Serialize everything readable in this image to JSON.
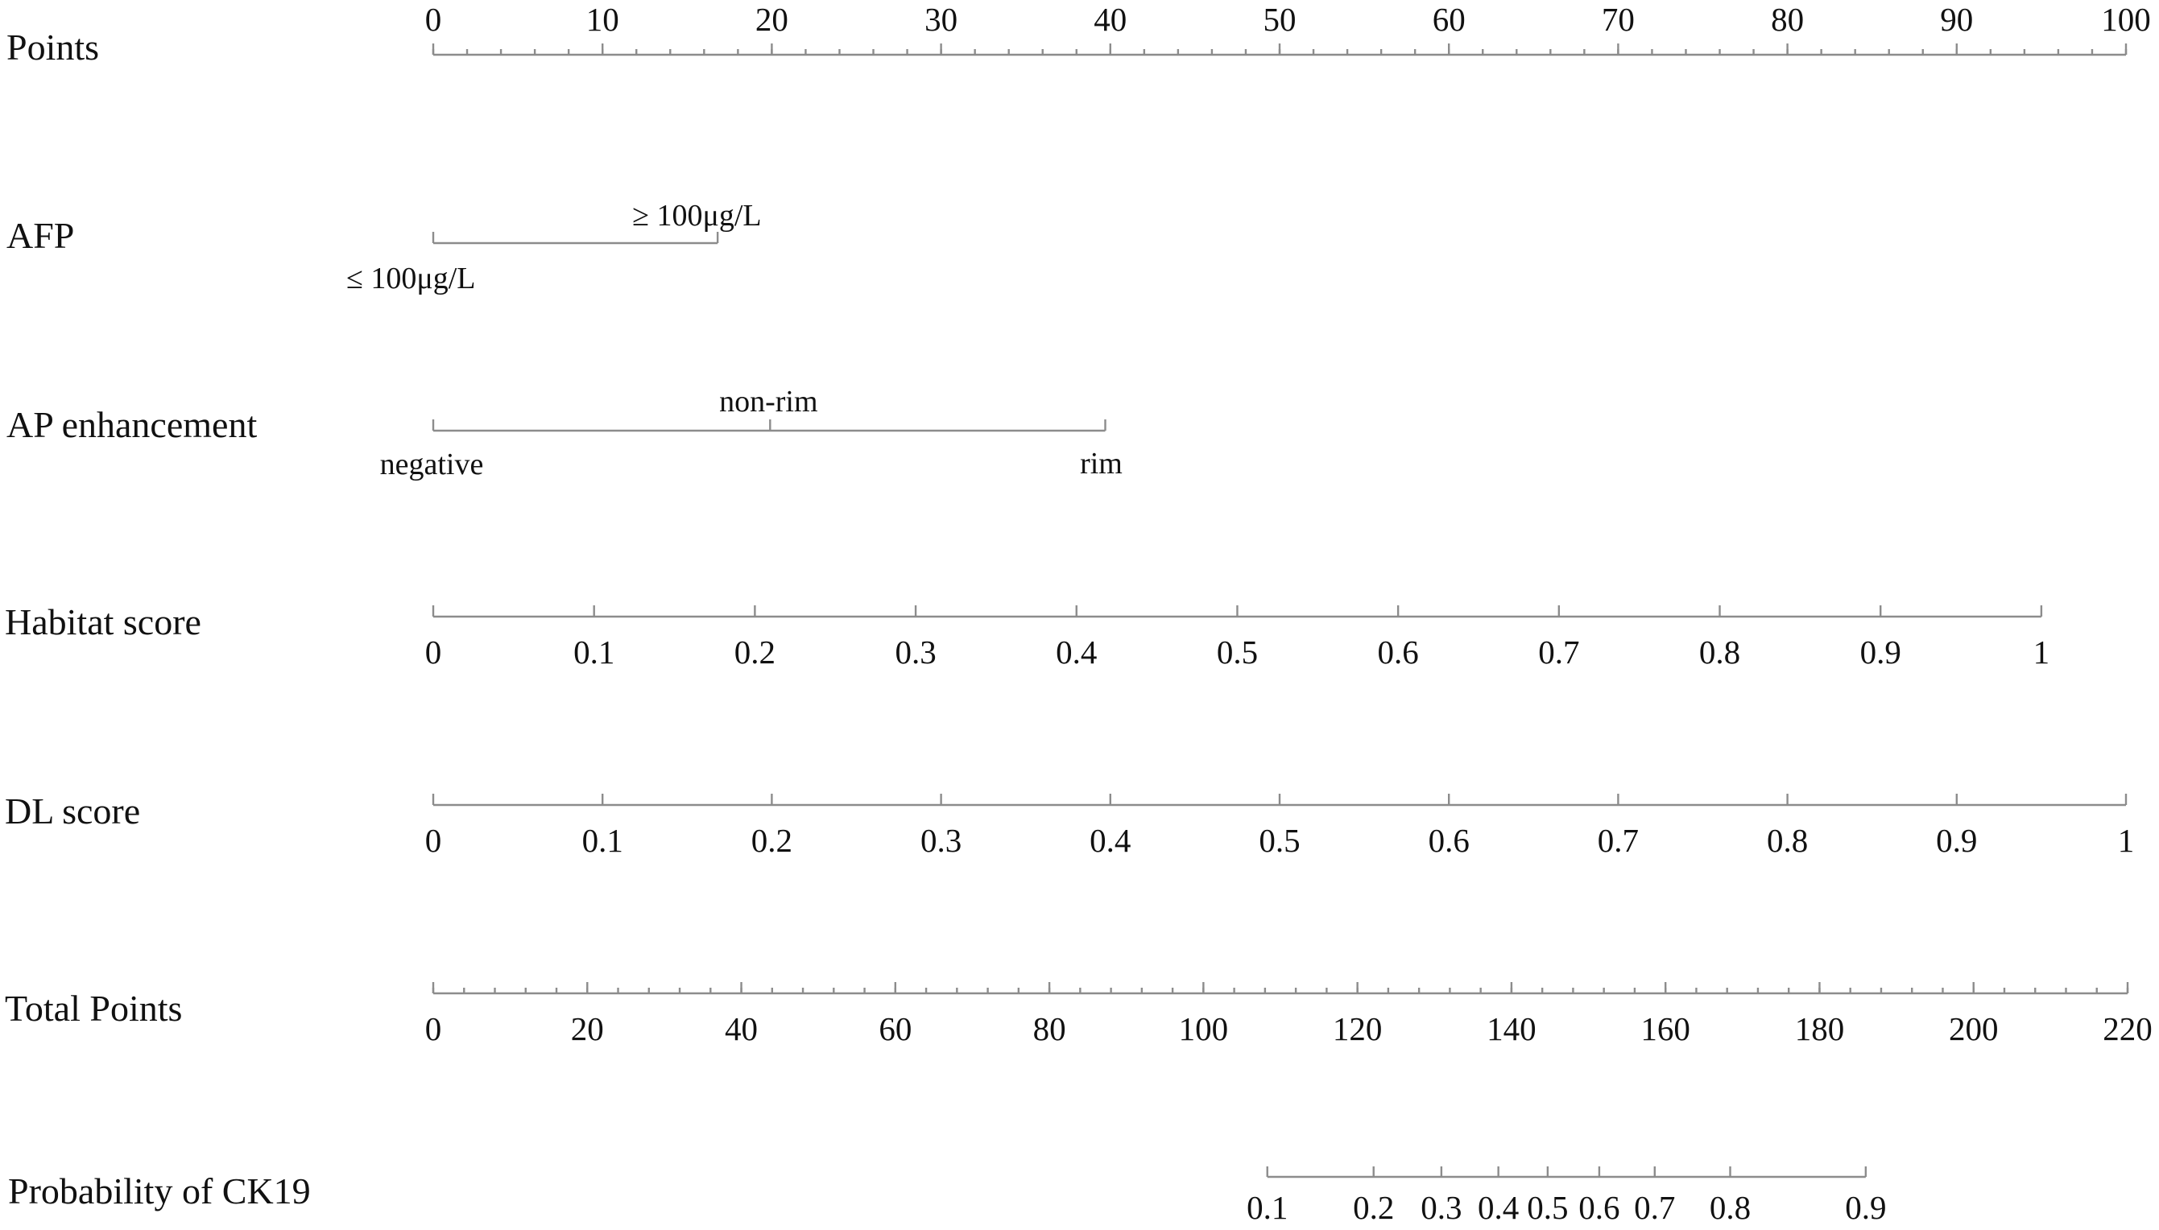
{
  "chart_data": {
    "type": "nomogram",
    "rows": [
      {
        "label": "Points",
        "kind": "continuous",
        "ticks": [
          "0",
          "10",
          "20",
          "30",
          "40",
          "50",
          "60",
          "70",
          "80",
          "90",
          "100"
        ],
        "tick_points": [
          0,
          10,
          20,
          30,
          40,
          50,
          60,
          70,
          80,
          90,
          100
        ],
        "minor_points": [
          0,
          2,
          4,
          6,
          8,
          10,
          12,
          14,
          16,
          18,
          20,
          22,
          24,
          26,
          28,
          30,
          32,
          34,
          36,
          38,
          40,
          42,
          44,
          46,
          48,
          50,
          52,
          54,
          56,
          58,
          60,
          62,
          64,
          66,
          68,
          70,
          72,
          74,
          76,
          78,
          80,
          82,
          84,
          86,
          88,
          90,
          92,
          94,
          96,
          98,
          100
        ],
        "points_range": [
          0,
          100
        ]
      },
      {
        "label": "AFP",
        "kind": "categorical",
        "levels": [
          {
            "label": "≤ 100μg/L",
            "points": 0
          },
          {
            "label": "≥ 100μg/L",
            "points": 16.8
          }
        ]
      },
      {
        "label": "AP enhancement",
        "kind": "categorical",
        "levels": [
          {
            "label": "negative",
            "points": 0
          },
          {
            "label": "non-rim",
            "points": 19.9
          },
          {
            "label": "rim",
            "points": 39.7
          }
        ]
      },
      {
        "label": "Habitat score",
        "kind": "continuous",
        "ticks": [
          "0",
          "0.1",
          "0.2",
          "0.3",
          "0.4",
          "0.5",
          "0.6",
          "0.7",
          "0.8",
          "0.9",
          "1"
        ],
        "tick_points": [
          0,
          9.5,
          19,
          28.5,
          38,
          47.5,
          57,
          66.5,
          76,
          85.5,
          95
        ],
        "points_range": [
          0,
          95
        ]
      },
      {
        "label": "DL score",
        "kind": "continuous",
        "ticks": [
          "0",
          "0.1",
          "0.2",
          "0.3",
          "0.4",
          "0.5",
          "0.6",
          "0.7",
          "0.8",
          "0.9",
          "1"
        ],
        "tick_points": [
          0,
          10,
          20,
          30,
          40,
          50,
          60,
          70,
          80,
          90,
          100
        ],
        "points_range": [
          0,
          100
        ]
      },
      {
        "label": "Total Points",
        "kind": "continuous",
        "ticks": [
          "0",
          "20",
          "40",
          "60",
          "80",
          "100",
          "120",
          "140",
          "160",
          "180",
          "200",
          "220"
        ],
        "tick_points": [
          0,
          20,
          40,
          60,
          80,
          100,
          120,
          140,
          160,
          180,
          200,
          220
        ],
        "points_range": [
          0,
          220
        ],
        "minor_step": 4
      },
      {
        "label": "Probability of CK19",
        "kind": "continuous",
        "ticks": [
          "0.1",
          "0.2",
          "0.3",
          "0.4",
          "0.5",
          "0.6",
          "0.7",
          "0.8",
          "0.9"
        ],
        "tick_total_points": [
          108.3,
          122.1,
          130.9,
          138.3,
          144.7,
          151.4,
          158.6,
          168.4,
          186.0
        ],
        "scale": "total_points"
      }
    ]
  }
}
